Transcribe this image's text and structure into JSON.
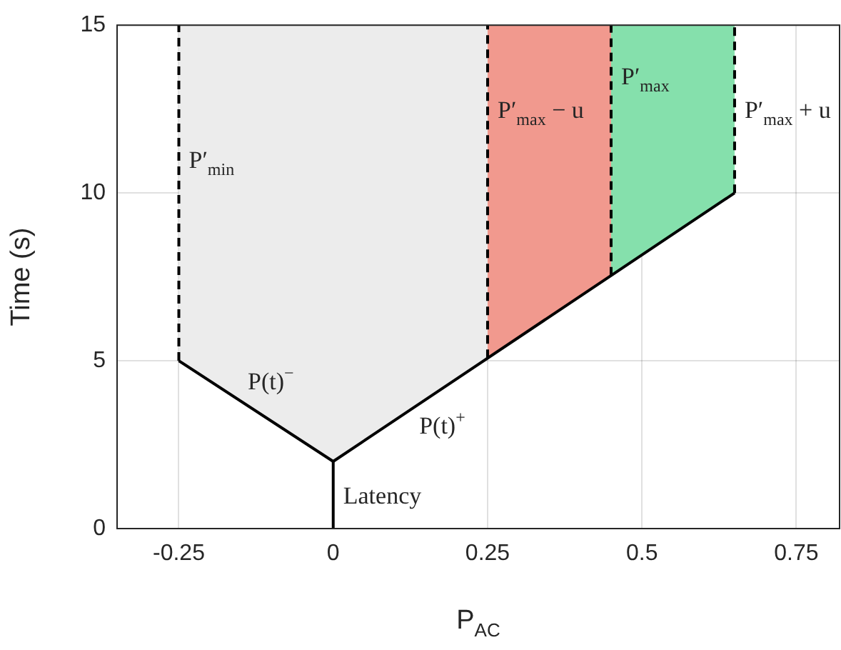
{
  "chart_data": {
    "type": "line",
    "xlabel": "P$_{AC}$",
    "ylabel": "Time (s)",
    "xlim": [
      -0.35,
      0.82
    ],
    "xticks": [
      -0.25,
      0,
      0.25,
      0.5,
      0.75
    ],
    "ylim": [
      0,
      15
    ],
    "yticks": [
      0,
      5,
      10,
      15
    ],
    "grid": true,
    "legend": false,
    "marker": "none",
    "series": [
      {
        "type": "area",
        "color": "#ececec",
        "x": [
          -0.25,
          -0.25,
          0,
          0.25,
          0.25
        ],
        "values": [
          15,
          5,
          2,
          5.08,
          15
        ]
      },
      {
        "type": "area",
        "color": "#f1998e",
        "x": [
          0.25,
          0.25,
          0.45,
          0.45
        ],
        "values": [
          15,
          5.08,
          7.54,
          15
        ]
      },
      {
        "type": "area",
        "color": "#85e0ac",
        "x": [
          0.45,
          0.45,
          0.65,
          0.65
        ],
        "values": [
          15,
          7.54,
          10,
          15
        ]
      },
      {
        "type": "line",
        "color": "#000000",
        "line_style": "solid",
        "x": [
          0,
          0
        ],
        "values": [
          0,
          2
        ]
      },
      {
        "type": "line",
        "color": "#000000",
        "line_style": "solid",
        "x": [
          -0.25,
          0,
          0.65
        ],
        "values": [
          5,
          2,
          10
        ]
      },
      {
        "type": "line",
        "color": "#000000",
        "line_style": "dashed",
        "x": [
          -0.25,
          -0.25
        ],
        "values": [
          5,
          15
        ]
      },
      {
        "type": "line",
        "color": "#000000",
        "line_style": "dashed",
        "x": [
          0.25,
          0.25
        ],
        "values": [
          5.08,
          15
        ]
      },
      {
        "type": "line",
        "color": "#000000",
        "line_style": "dashed",
        "x": [
          0.45,
          0.45
        ],
        "values": [
          7.54,
          15
        ]
      },
      {
        "type": "line",
        "color": "#000000",
        "line_style": "dashed",
        "x": [
          0.65,
          0.65
        ],
        "values": [
          10,
          15
        ]
      }
    ],
    "annotations": [
      {
        "text": "P′$_{min}$",
        "x": -0.25,
        "y": 11
      },
      {
        "text": "P′$_{max}$ − u",
        "x": 0.25,
        "y": 12.5
      },
      {
        "text": "P′$_{max}$",
        "x": 0.45,
        "y": 13.5
      },
      {
        "text": "P′$_{max}$ + u",
        "x": 0.65,
        "y": 12.5
      },
      {
        "text": "P(t)$^{−}$",
        "x": -0.15,
        "y": 3.8
      },
      {
        "text": "P(t)$^{+}$",
        "x": 0.13,
        "y": 3.6
      },
      {
        "text": "Latency",
        "x": 0,
        "y": 1
      }
    ]
  }
}
